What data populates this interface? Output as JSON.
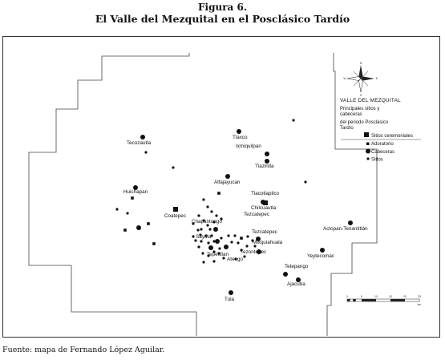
{
  "figure": {
    "number": "Figura 6.",
    "title": "El Valle del Mezquital en el Posclásico Tardío"
  },
  "legend": {
    "compass_n": "N",
    "compass_s": "S",
    "compass_w": "W",
    "compass_e": "E",
    "title": "VALLE DEL MEZQUITAL",
    "line1": "Principales sitios y",
    "line2": "cabeceras",
    "line3": "del periodo Posclásico",
    "line4": "Tardío",
    "items": [
      {
        "symbol": "large-square",
        "label": "Sitios ceremoniales"
      },
      {
        "symbol": "small-square",
        "label": "Adoratorio"
      },
      {
        "symbol": "large-circle",
        "label": "Cabeceras"
      },
      {
        "symbol": "small-circle",
        "label": "Sitios"
      }
    ],
    "scale_ticks": [
      "0",
      "5",
      "10",
      "15",
      "20",
      "25"
    ],
    "scale_unit": "km"
  },
  "places": [
    {
      "id": "tecozautla",
      "label": "Tecozautla"
    },
    {
      "id": "tlaxco",
      "label": "Tlaxco"
    },
    {
      "id": "ixmiquilpan",
      "label": "Ixmiquilpan"
    },
    {
      "id": "tlazintla",
      "label": "Tlazintla"
    },
    {
      "id": "alfajayucan",
      "label": "Alfajayucan"
    },
    {
      "id": "huichapan",
      "label": "Huichapan"
    },
    {
      "id": "tlacotlapilco",
      "label": "Tlacotlapilco"
    },
    {
      "id": "chilcuautla",
      "label": "Chilcuautla"
    },
    {
      "id": "coatepec",
      "label": "Coatepec"
    },
    {
      "id": "tezcatepec1",
      "label": "Tezcatepec"
    },
    {
      "id": "chapantongo",
      "label": "Chapantongo"
    },
    {
      "id": "tezcatepec2",
      "label": "Tezcatepec"
    },
    {
      "id": "actopan",
      "label": "Actopan-Tenantitlán"
    },
    {
      "id": "sayula",
      "label": "Sayula"
    },
    {
      "id": "mixquiahuala",
      "label": "Mixquiahuala"
    },
    {
      "id": "tepetitlan",
      "label": "Tepetitlan"
    },
    {
      "id": "tezontepec",
      "label": "Tezontepec"
    },
    {
      "id": "atengo",
      "label": "Atengo"
    },
    {
      "id": "yeytecomac",
      "label": "Yeytecomac"
    },
    {
      "id": "tetepango",
      "label": "Tetepango"
    },
    {
      "id": "ajacuba",
      "label": "Ajacuba"
    },
    {
      "id": "tula",
      "label": "Tula"
    }
  ],
  "source": "Fuente: mapa de Fernando López Aguilar."
}
